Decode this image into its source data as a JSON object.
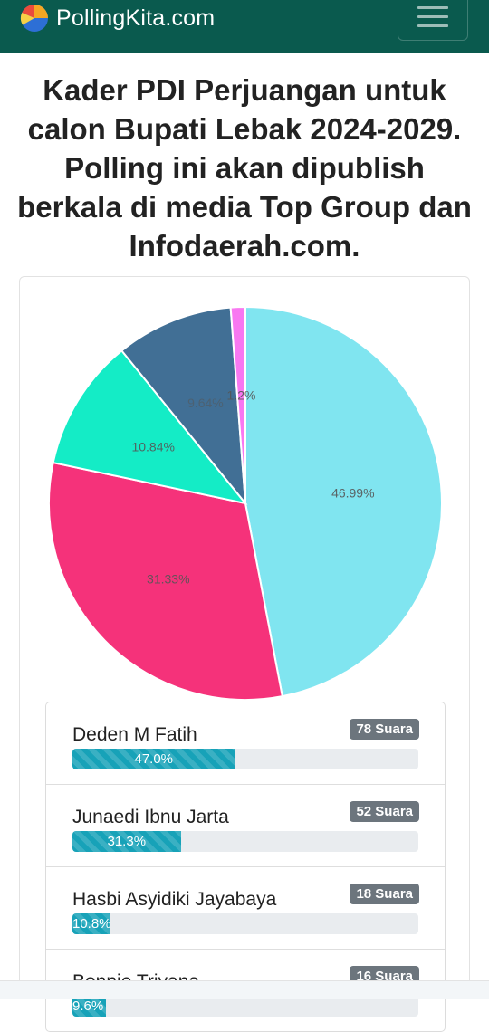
{
  "navbar": {
    "brand": "PollingKita.com",
    "logo_icon": "pie-logo-icon",
    "menu_icon": "hamburger-menu-icon"
  },
  "title": "Kader PDI Perjuangan untuk calon Bupati Lebak 2024-2029. Polling ini akan dipublish berkala di media Top Group dan Infodaerah.com.",
  "chart_data": {
    "type": "pie",
    "labels": [
      "Deden M Fatih",
      "Junaedi Ibnu Jarta",
      "Hasbi Asyidiki Jayabaya",
      "Bonnie Triyana",
      ""
    ],
    "values": [
      46.99,
      31.33,
      10.84,
      9.64,
      1.2
    ],
    "display_labels": [
      "46.99%",
      "31.33%",
      "10.84%",
      "9.64%",
      "1.2%"
    ],
    "colors": [
      "#80e5f0",
      "#f5327a",
      "#14ecc6",
      "#416f95",
      "#f878f1"
    ]
  },
  "results": [
    {
      "name": "Deden M Fatih",
      "votes": "78 Suara",
      "percent": 47.0,
      "percent_label": "47.0%"
    },
    {
      "name": "Junaedi Ibnu Jarta",
      "votes": "52 Suara",
      "percent": 31.3,
      "percent_label": "31.3%"
    },
    {
      "name": "Hasbi Asyidiki Jayabaya",
      "votes": "18 Suara",
      "percent": 10.8,
      "percent_label": "10.8%"
    },
    {
      "name": "Bonnie Triyana",
      "votes": "16 Suara",
      "percent": 9.6,
      "percent_label": "9.6%"
    }
  ]
}
